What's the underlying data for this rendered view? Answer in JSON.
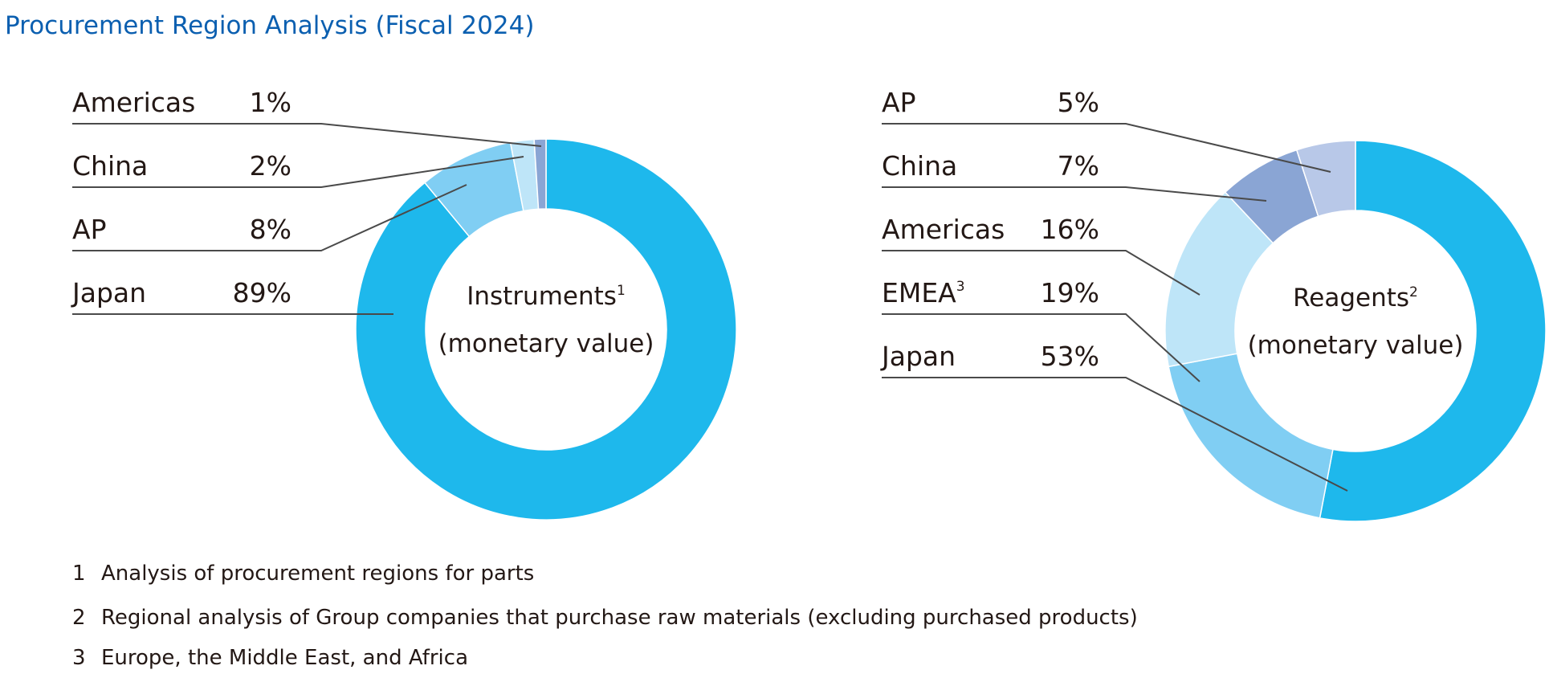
{
  "title": "Procurement Region Analysis (Fiscal 2024)",
  "chart_data": [
    {
      "type": "pie",
      "variant": "donut",
      "center_label": "Instruments",
      "center_sup": "1",
      "center_sub": "(monetary value)",
      "slices": [
        {
          "label": "Japan",
          "value": 89,
          "display": "89%",
          "color": "#1eb8ec"
        },
        {
          "label": "AP",
          "value": 8,
          "display": "8%",
          "color": "#80cef3"
        },
        {
          "label": "China",
          "value": 2,
          "display": "2%",
          "color": "#bee5f8"
        },
        {
          "label": "Americas",
          "value": 1,
          "display": "1%",
          "color": "#8aa5d4"
        }
      ],
      "legend_order": [
        "Americas",
        "China",
        "AP",
        "Japan"
      ]
    },
    {
      "type": "pie",
      "variant": "donut",
      "center_label": "Reagents",
      "center_sup": "2",
      "center_sub": "(monetary value)",
      "slices": [
        {
          "label": "Japan",
          "value": 53,
          "display": "53%",
          "color": "#1eb8ec"
        },
        {
          "label": "EMEA",
          "sup": "3",
          "value": 19,
          "display": "19%",
          "color": "#80cef3"
        },
        {
          "label": "Americas",
          "value": 16,
          "display": "16%",
          "color": "#bee5f8"
        },
        {
          "label": "China",
          "value": 7,
          "display": "7%",
          "color": "#8aa5d4"
        },
        {
          "label": "AP",
          "value": 5,
          "display": "5%",
          "color": "#b8c8e8"
        }
      ],
      "legend_order": [
        "AP",
        "China",
        "Americas",
        "EMEA",
        "Japan"
      ]
    }
  ],
  "footnotes": [
    {
      "num": "1",
      "text": "Analysis of procurement regions for parts"
    },
    {
      "num": "2",
      "text": "Regional analysis of Group companies that purchase raw materials (excluding purchased products)"
    },
    {
      "num": "3",
      "text": "Europe, the Middle East, and Africa"
    }
  ]
}
